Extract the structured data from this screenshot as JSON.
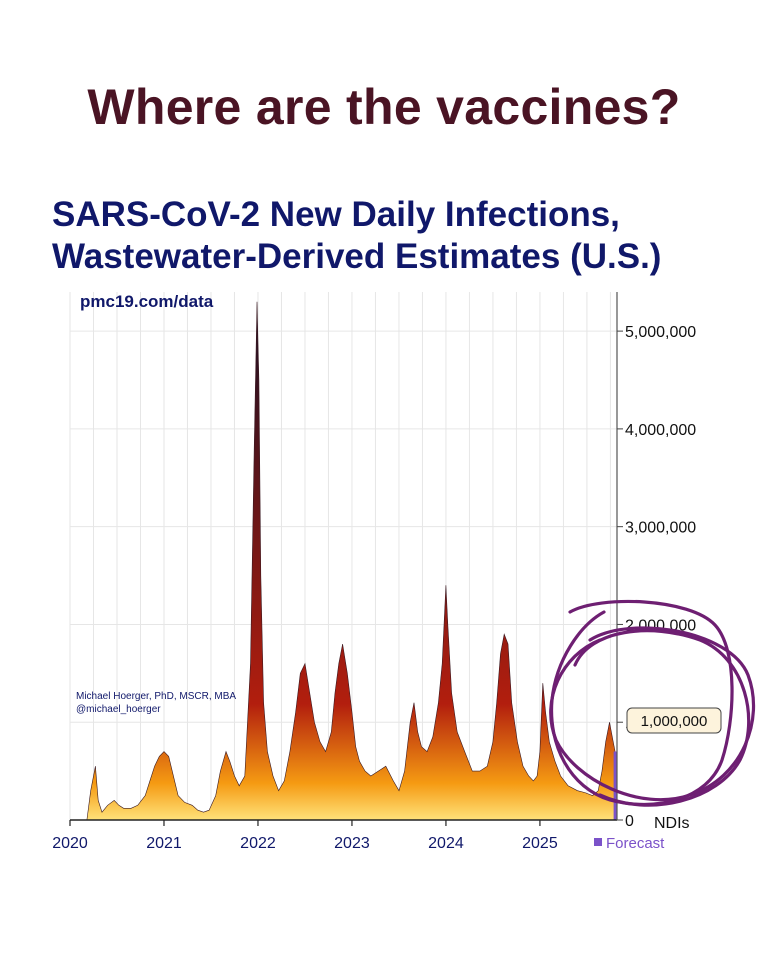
{
  "headline": "Where are the vaccines?",
  "chart_data": {
    "type": "area",
    "title_line1": "SARS-CoV-2 New Daily Infections,",
    "title_line2": "Wastewater-Derived Estimates (U.S.)",
    "source_label": "pmc19.com/data",
    "credit_line1": "Michael Hoerger, PhD, MSCR, MBA",
    "credit_line2": "@michael_hoerger",
    "ylabel_unit": "NDIs",
    "xlim": [
      2020.0,
      2025.82
    ],
    "ylim": [
      0,
      5400000
    ],
    "yticks": [
      {
        "value": 0,
        "label": "0"
      },
      {
        "value": 1000000,
        "label": "1,000,000"
      },
      {
        "value": 2000000,
        "label": "2,000,000"
      },
      {
        "value": 3000000,
        "label": "3,000,000"
      },
      {
        "value": 4000000,
        "label": "4,000,000"
      },
      {
        "value": 5000000,
        "label": "5,000,000"
      }
    ],
    "xticks": [
      {
        "value": 2020,
        "label": "2020"
      },
      {
        "value": 2021,
        "label": "2021"
      },
      {
        "value": 2022,
        "label": "2022"
      },
      {
        "value": 2023,
        "label": "2023"
      },
      {
        "value": 2024,
        "label": "2024"
      },
      {
        "value": 2025,
        "label": "2025"
      }
    ],
    "legend": {
      "label": "Forecast",
      "color": "#7b52c9"
    },
    "highlight_label": "1,000,000",
    "colors": {
      "high": "#2e1020",
      "mid": "#b21e0e",
      "low": "#f59a12",
      "base": "#ffe27a",
      "annotation": "#6e1f72"
    },
    "series": [
      {
        "name": "New Daily Infections",
        "x": [
          2020.0,
          2020.18,
          2020.22,
          2020.27,
          2020.3,
          2020.34,
          2020.4,
          2020.47,
          2020.52,
          2020.57,
          2020.65,
          2020.72,
          2020.8,
          2020.85,
          2020.9,
          2020.95,
          2021.0,
          2021.05,
          2021.1,
          2021.15,
          2021.22,
          2021.3,
          2021.36,
          2021.42,
          2021.48,
          2021.55,
          2021.6,
          2021.66,
          2021.7,
          2021.75,
          2021.8,
          2021.86,
          2021.92,
          2021.96,
          2021.99,
          2022.01,
          2022.03,
          2022.06,
          2022.1,
          2022.16,
          2022.22,
          2022.28,
          2022.34,
          2022.4,
          2022.45,
          2022.5,
          2022.55,
          2022.6,
          2022.66,
          2022.72,
          2022.78,
          2022.82,
          2022.86,
          2022.9,
          2022.95,
          2023.0,
          2023.04,
          2023.08,
          2023.14,
          2023.2,
          2023.28,
          2023.36,
          2023.44,
          2023.5,
          2023.56,
          2023.62,
          2023.66,
          2023.7,
          2023.74,
          2023.8,
          2023.86,
          2023.92,
          2023.96,
          2024.0,
          2024.02,
          2024.06,
          2024.12,
          2024.2,
          2024.28,
          2024.36,
          2024.44,
          2024.5,
          2024.54,
          2024.58,
          2024.62,
          2024.66,
          2024.7,
          2024.76,
          2024.82,
          2024.88,
          2024.93,
          2024.97,
          2025.0,
          2025.03,
          2025.06,
          2025.1,
          2025.16,
          2025.22,
          2025.3,
          2025.4,
          2025.48,
          2025.56,
          2025.62,
          2025.66,
          2025.7,
          2025.74,
          2025.78,
          2025.8
        ],
        "values": [
          0,
          0,
          300000,
          550000,
          200000,
          80000,
          150000,
          200000,
          150000,
          120000,
          120000,
          150000,
          250000,
          400000,
          550000,
          650000,
          700000,
          650000,
          450000,
          250000,
          180000,
          150000,
          100000,
          80000,
          100000,
          250000,
          500000,
          700000,
          600000,
          450000,
          350000,
          450000,
          1600000,
          3800000,
          5300000,
          4500000,
          2500000,
          1200000,
          700000,
          450000,
          300000,
          400000,
          700000,
          1100000,
          1500000,
          1600000,
          1300000,
          1000000,
          800000,
          700000,
          900000,
          1300000,
          1600000,
          1800000,
          1500000,
          1100000,
          750000,
          600000,
          500000,
          450000,
          500000,
          550000,
          400000,
          300000,
          500000,
          1000000,
          1200000,
          900000,
          750000,
          700000,
          850000,
          1200000,
          1600000,
          2400000,
          2000000,
          1300000,
          900000,
          700000,
          500000,
          500000,
          550000,
          800000,
          1200000,
          1700000,
          1900000,
          1800000,
          1200000,
          800000,
          550000,
          450000,
          400000,
          450000,
          700000,
          1400000,
          1100000,
          800000,
          600000,
          450000,
          350000,
          300000,
          280000,
          250000,
          300000,
          500000,
          800000,
          1000000,
          800000,
          700000
        ]
      }
    ]
  }
}
